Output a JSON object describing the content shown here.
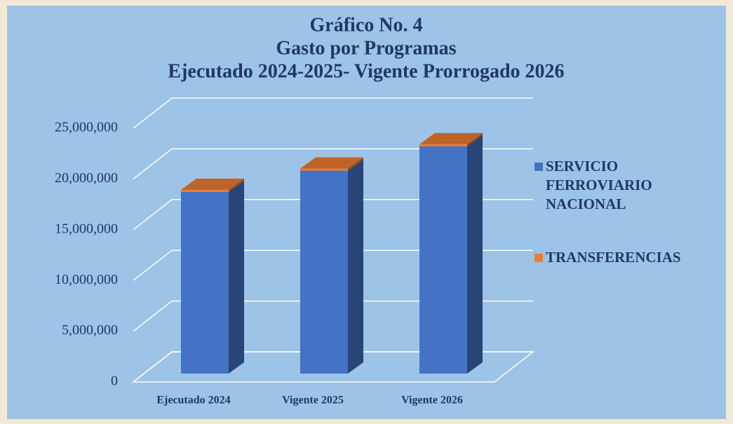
{
  "chart_data": {
    "type": "bar3d_stacked",
    "title": [
      "Gráfico No. 4",
      "Gasto por Programas",
      "Ejecutado 2024-2025- Vigente Prorrogado 2026"
    ],
    "categories": [
      "Ejecutado 2024",
      "Vigente 2025",
      "Vigente 2026"
    ],
    "series": [
      {
        "name": "SERVICIO FERROVIARIO NACIONAL",
        "color": "#4472C4",
        "values": [
          17900000,
          20000000,
          22400000
        ]
      },
      {
        "name": "TRANSFERENCIAS",
        "color": "#ED7D31",
        "values": [
          200000,
          200000,
          200000
        ]
      }
    ],
    "ylim": [
      0,
      25000000
    ],
    "yticks": [
      0,
      {
        "value": 5000000,
        "label": "5,000,000"
      },
      {
        "value": 10000000,
        "label": "10,000,000"
      },
      {
        "value": 15000000,
        "label": "15,000,000"
      },
      {
        "value": 20000000,
        "label": "20,000,000"
      },
      {
        "value": 25000000,
        "label": "25,000,000"
      }
    ],
    "grid": true,
    "legend": "right"
  }
}
